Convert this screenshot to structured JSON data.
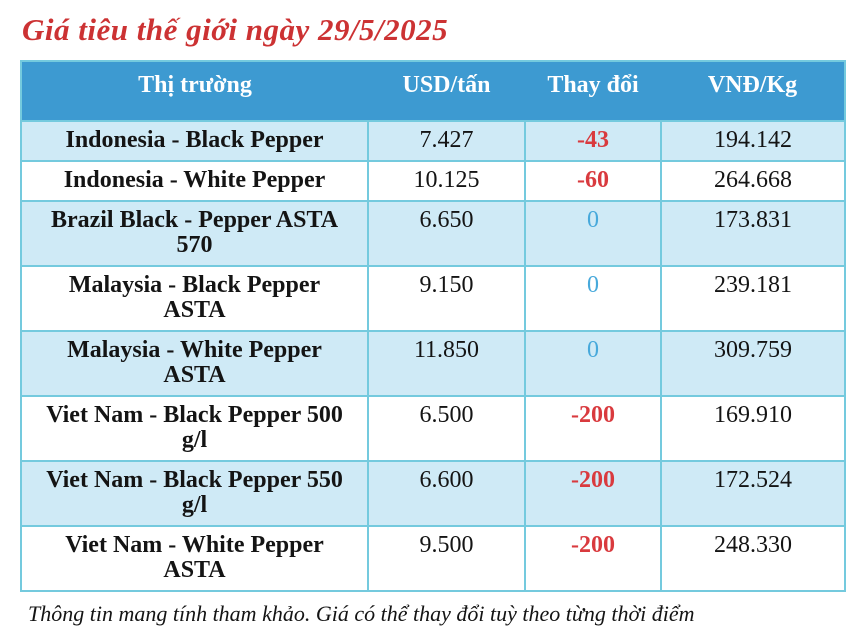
{
  "page": {
    "title": "Giá tiêu thế giới ngày 29/5/2025",
    "footnote": "Thông tin mang tính tham khảo. Giá có thể thay đổi tuỳ theo từng thời điểm"
  },
  "table": {
    "columns": [
      "Thị trường",
      "USD/tấn",
      "Thay đổi",
      "VNĐ/Kg"
    ],
    "rows": [
      {
        "market": "Indonesia - Black Pepper",
        "usd": "7.427",
        "change": "-43",
        "vnd": "194.142",
        "trend": "down"
      },
      {
        "market": "Indonesia - White Pepper",
        "usd": "10.125",
        "change": "-60",
        "vnd": "264.668",
        "trend": "down"
      },
      {
        "market": "Brazil Black - Pepper ASTA 570",
        "usd": "6.650",
        "change": "0",
        "vnd": "173.831",
        "trend": "flat"
      },
      {
        "market": "Malaysia - Black Pepper ASTA",
        "usd": "9.150",
        "change": "0",
        "vnd": "239.181",
        "trend": "flat"
      },
      {
        "market": "Malaysia - White Pepper ASTA",
        "usd": "11.850",
        "change": "0",
        "vnd": "309.759",
        "trend": "flat"
      },
      {
        "market": "Viet Nam - Black Pepper 500 g/l",
        "usd": "6.500",
        "change": "-200",
        "vnd": "169.910",
        "trend": "down"
      },
      {
        "market": "Viet Nam - Black Pepper 550 g/l",
        "usd": "6.600",
        "change": "-200",
        "vnd": "172.524",
        "trend": "down"
      },
      {
        "market": "Viet Nam - White Pepper ASTA",
        "usd": "9.500",
        "change": "-200",
        "vnd": "248.330",
        "trend": "down"
      }
    ]
  },
  "colors": {
    "title_red": "#cc3233",
    "header_bg": "#3d9ad1",
    "header_text": "#ffffff",
    "row_alt_bg": "#cfeaf6",
    "row_bg": "#ffffff",
    "border": "#74cade",
    "change_negative": "#d93a3e",
    "change_zero": "#47a9db",
    "body_text": "#141414"
  },
  "chart_data": {
    "type": "table",
    "title": "Giá tiêu thế giới ngày 29/5/2025",
    "columns": [
      "Thị trường",
      "USD/tấn",
      "Thay đổi",
      "VNĐ/Kg"
    ],
    "rows": [
      [
        "Indonesia - Black Pepper",
        7427,
        -43,
        194142
      ],
      [
        "Indonesia - White Pepper",
        10125,
        -60,
        264668
      ],
      [
        "Brazil Black - Pepper ASTA 570",
        6650,
        0,
        173831
      ],
      [
        "Malaysia - Black Pepper ASTA",
        9150,
        0,
        239181
      ],
      [
        "Malaysia - White Pepper ASTA",
        11850,
        0,
        309759
      ],
      [
        "Viet Nam - Black Pepper 500 g/l",
        6500,
        -200,
        169910
      ],
      [
        "Viet Nam - Black Pepper 550 g/l",
        6600,
        -200,
        172524
      ],
      [
        "Viet Nam - White Pepper ASTA",
        9500,
        -200,
        248330
      ]
    ],
    "note": "Thông tin mang tính tham khảo. Giá có thể thay đổi tuỳ theo từng thời điểm"
  }
}
